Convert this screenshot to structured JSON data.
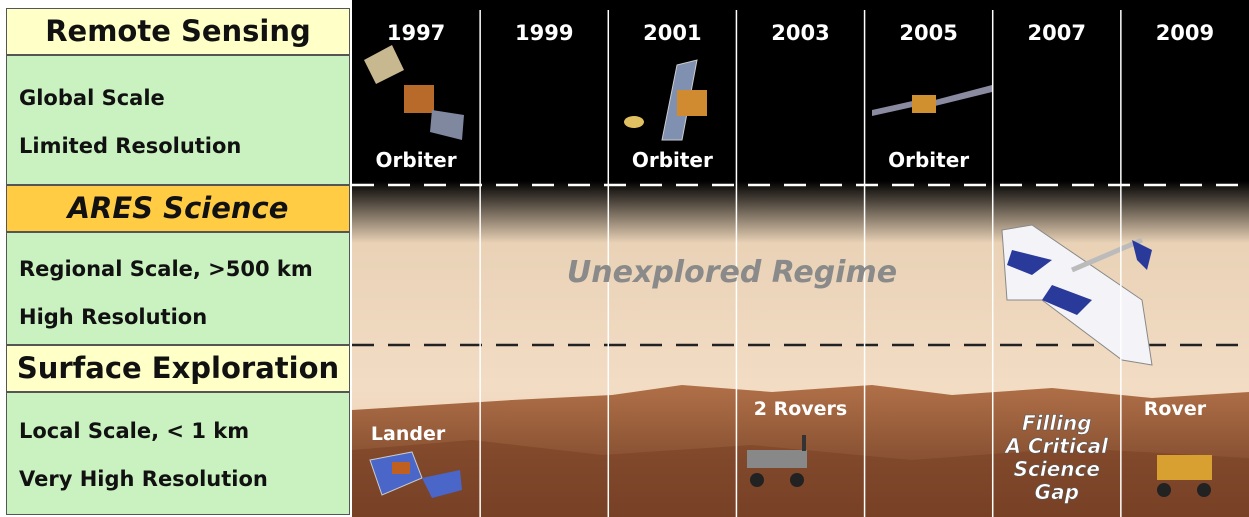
{
  "left_panel": [
    {
      "heading": "Remote Sensing",
      "lines": [
        "Global Scale",
        "Limited Resolution"
      ]
    },
    {
      "heading": "ARES Science",
      "lines": [
        "Regional Scale, >500 km",
        "High Resolution"
      ]
    },
    {
      "heading": "Surface Exploration",
      "lines": [
        "Local Scale, < 1 km",
        "Very High Resolution"
      ]
    }
  ],
  "timeline": {
    "columns": [
      {
        "year": "1997",
        "orbit": "Orbiter",
        "surface": "Lander"
      },
      {
        "year": "1999"
      },
      {
        "year": "2001",
        "orbit": "Orbiter"
      },
      {
        "year": "2003",
        "surface": "2 Rovers"
      },
      {
        "year": "2005",
        "orbit": "Orbiter"
      },
      {
        "year": "2007",
        "note": [
          "Filling",
          "A Critical",
          "Science",
          "Gap"
        ]
      },
      {
        "year": "2009",
        "surface": "Rover"
      }
    ],
    "middle_label": "Unexplored Regime"
  }
}
